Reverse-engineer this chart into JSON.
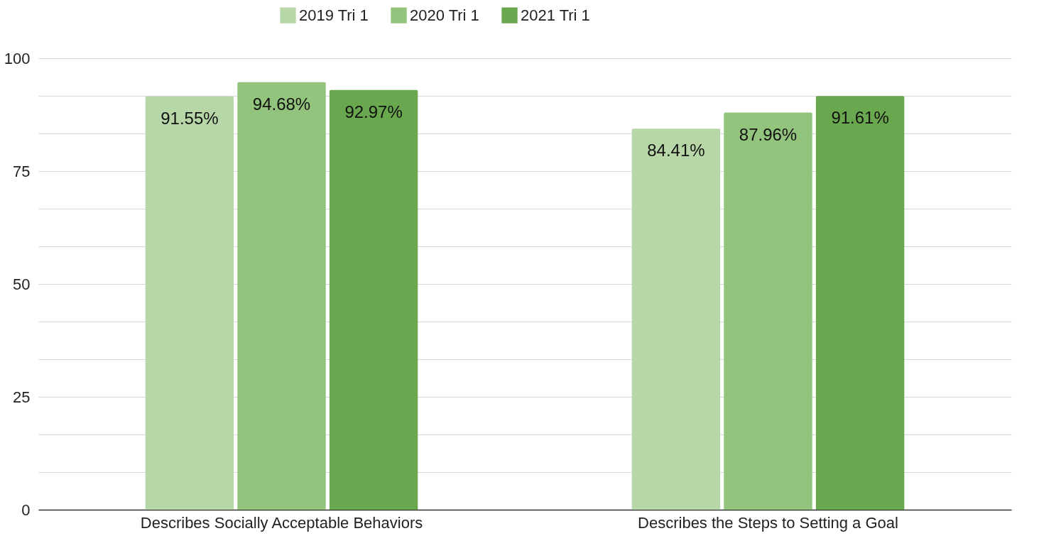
{
  "chart_data": {
    "type": "bar",
    "categories": [
      "Describes Socially Acceptable Behaviors",
      "Describes the Steps to Setting a Goal"
    ],
    "series": [
      {
        "name": "2019 Tri 1",
        "color": "#b7d7a8",
        "values": [
          91.55,
          84.41
        ],
        "value_labels": [
          "91.55%",
          "84.41%"
        ]
      },
      {
        "name": "2020 Tri 1",
        "color": "#93c47d",
        "values": [
          94.68,
          87.96
        ],
        "value_labels": [
          "94.68%",
          "87.96%"
        ]
      },
      {
        "name": "2021 Tri 1",
        "color": "#6aa84f",
        "values": [
          92.97,
          91.61
        ],
        "value_labels": [
          "92.97%",
          "91.61%"
        ]
      }
    ],
    "ylim": [
      0,
      100
    ],
    "yticks": [
      0,
      {
        "value": 8.33,
        "label": null
      },
      {
        "value": 16.67,
        "label": null
      },
      25,
      {
        "value": 33.33,
        "label": null
      },
      {
        "value": 41.67,
        "label": null
      },
      50,
      {
        "value": 58.33,
        "label": null
      },
      {
        "value": 66.67,
        "label": null
      },
      75,
      {
        "value": 83.33,
        "label": null
      },
      {
        "value": 91.67,
        "label": null
      },
      100
    ],
    "grid": "y",
    "legend": "top"
  }
}
